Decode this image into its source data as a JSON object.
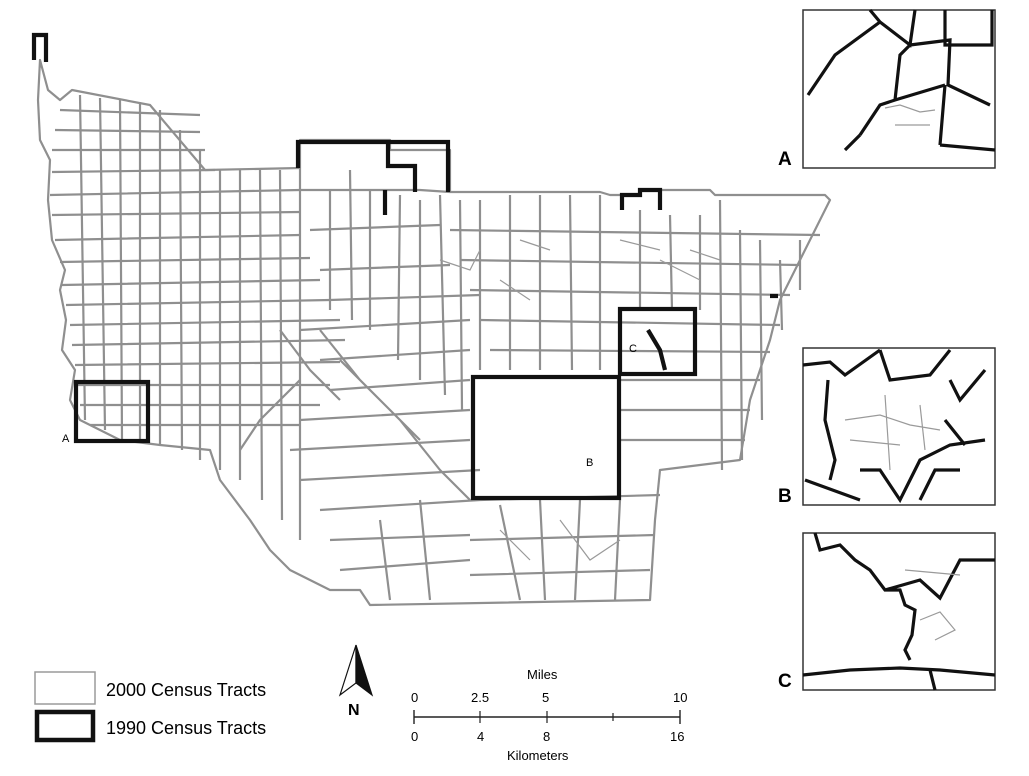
{
  "map": {
    "box_labels": {
      "a": "A",
      "b": "B",
      "c": "C"
    }
  },
  "insets": {
    "a": {
      "label": "A"
    },
    "b": {
      "label": "B"
    },
    "c": {
      "label": "C"
    }
  },
  "legend": {
    "items": [
      {
        "label": "2000 Census Tracts",
        "color": "#8f8f8f"
      },
      {
        "label": "1990 Census Tracts",
        "color": "#111111"
      }
    ]
  },
  "north_arrow": {
    "label": "N"
  },
  "scale_bar": {
    "top_unit": "Miles",
    "top_ticks": [
      "0",
      "2.5",
      "5",
      "10"
    ],
    "bottom_unit": "Kilometers",
    "bottom_ticks": [
      "0",
      "4",
      "8",
      "16"
    ]
  }
}
